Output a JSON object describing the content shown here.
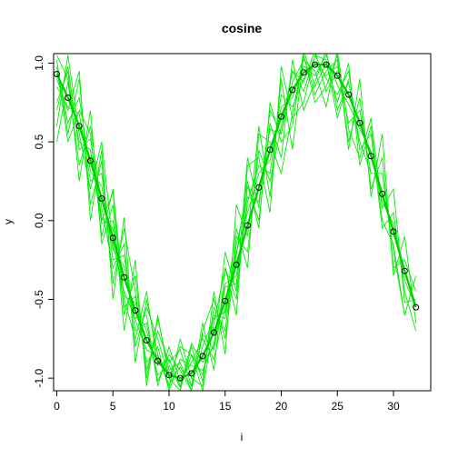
{
  "chart_data": {
    "type": "line",
    "title": "cosine",
    "xlabel": "i",
    "ylabel": "y",
    "xlim": [
      0,
      33
    ],
    "ylim": [
      -1.08,
      1.06
    ],
    "x_ticks": [
      0,
      5,
      10,
      15,
      20,
      25,
      30
    ],
    "y_ticks": [
      -1.0,
      -0.5,
      0.0,
      0.5,
      1.0
    ],
    "y_tick_labels": [
      "-1.0",
      "-0.5",
      "0.0",
      "0.5",
      "1.0"
    ],
    "grid": false,
    "colors": {
      "noisy_lines": "#00ee00",
      "main_line": "#00cc00",
      "points": "#000000"
    },
    "main_series": {
      "x": [
        0,
        1,
        2,
        3,
        4,
        5,
        6,
        7,
        8,
        9,
        10,
        11,
        12,
        13,
        14,
        15,
        16,
        17,
        18,
        19,
        20,
        21,
        22,
        23,
        24,
        25,
        26,
        27,
        28,
        29,
        30,
        31,
        32
      ],
      "y": [
        0.93,
        0.78,
        0.6,
        0.38,
        0.14,
        -0.11,
        -0.36,
        -0.57,
        -0.76,
        -0.89,
        -0.98,
        -1.0,
        -0.97,
        -0.86,
        -0.71,
        -0.51,
        -0.28,
        -0.03,
        0.21,
        0.45,
        0.66,
        0.83,
        0.94,
        0.99,
        0.99,
        0.92,
        0.8,
        0.62,
        0.41,
        0.17,
        -0.07,
        -0.32,
        -0.55
      ]
    },
    "noisy_series": [
      {
        "x": [
          0,
          1,
          2,
          3,
          4,
          5,
          6,
          7,
          8,
          9,
          10,
          11,
          12,
          13,
          14,
          15,
          16,
          17,
          18,
          19,
          20,
          21,
          22,
          23,
          24,
          25,
          26,
          27,
          28,
          29,
          30,
          31,
          32
        ],
        "y": [
          0.95,
          0.62,
          0.78,
          0.31,
          0.22,
          -0.18,
          -0.29,
          -0.63,
          -0.82,
          -0.86,
          -1.04,
          -0.93,
          -1.05,
          -0.8,
          -0.62,
          -0.58,
          -0.2,
          0.05,
          0.3,
          0.38,
          0.72,
          0.78,
          0.98,
          0.92,
          1.05,
          0.86,
          0.74,
          0.58,
          0.44,
          0.12,
          -0.02,
          -0.38,
          -0.55
        ]
      },
      {
        "x": [
          0,
          1,
          2,
          3,
          4,
          5,
          6,
          7,
          8,
          9,
          10,
          11,
          12,
          13,
          14,
          15,
          16,
          17
        ],
        "y": [
          0.7,
          0.98,
          0.45,
          0.52,
          0.02,
          -0.05,
          -0.55,
          -0.48,
          -0.9,
          -0.8,
          -1.08,
          -0.88,
          -0.92,
          -0.95,
          -0.78,
          -0.4,
          -0.35,
          0.1
        ]
      },
      {
        "x": [
          0,
          1,
          2,
          3,
          4,
          5,
          6,
          7,
          8,
          9,
          10,
          11,
          12,
          13,
          14,
          15,
          16,
          17,
          18,
          19,
          20,
          21,
          22,
          23,
          24,
          25
        ],
        "y": [
          1.05,
          0.9,
          0.5,
          0.45,
          -0.02,
          0.0,
          -0.48,
          -0.52,
          -0.7,
          -0.98,
          -0.92,
          -1.06,
          -0.85,
          -0.98,
          -0.6,
          -0.62,
          -0.15,
          0.15,
          0.12,
          0.58,
          0.55,
          0.95,
          0.88,
          1.08,
          0.82,
          0.95
        ]
      },
      {
        "x": [
          0,
          1,
          2,
          3,
          4,
          5,
          6,
          7,
          8,
          9,
          10,
          11,
          12,
          13,
          14,
          15,
          16,
          17,
          18,
          19,
          20,
          21,
          22,
          23,
          24,
          25,
          26,
          27,
          28
        ],
        "y": [
          0.85,
          0.72,
          0.68,
          0.25,
          0.3,
          -0.25,
          -0.22,
          -0.7,
          -0.65,
          -1.02,
          -0.85,
          -0.95,
          -1.08,
          -0.72,
          -0.82,
          -0.42,
          -0.4,
          0.12,
          0.35,
          0.3,
          0.8,
          0.72,
          0.9,
          1.0,
          0.92,
          0.98,
          0.62,
          0.7,
          0.3
        ]
      },
      {
        "x": [
          0,
          1,
          2,
          3,
          4,
          5,
          6,
          7,
          8,
          9,
          10,
          11,
          12,
          13,
          14,
          15,
          16,
          17,
          18,
          19,
          20,
          21,
          22,
          23,
          24,
          25,
          26,
          27,
          28,
          29,
          30,
          31,
          32
        ],
        "y": [
          0.5,
          0.88,
          0.35,
          0.6,
          0.08,
          -0.3,
          -0.15,
          -0.8,
          -0.55,
          -0.75,
          -1.0,
          -1.08,
          -0.8,
          -1.02,
          -0.55,
          -0.7,
          -0.1,
          -0.2,
          0.45,
          0.25,
          0.6,
          0.95,
          0.82,
          1.05,
          0.9,
          0.8,
          0.95,
          0.45,
          0.55,
          -0.05,
          0.05,
          -0.45,
          -0.7
        ]
      },
      {
        "x": [
          0,
          1,
          2,
          3,
          4,
          5,
          6,
          7,
          8,
          9,
          10,
          11,
          12,
          13,
          14,
          15,
          16,
          17,
          18,
          19,
          20,
          21,
          22,
          23,
          24,
          25,
          26,
          27,
          28,
          29,
          30,
          31
        ],
        "y": [
          1.02,
          0.55,
          0.9,
          0.1,
          0.38,
          -0.4,
          -0.05,
          -0.45,
          -0.95,
          -0.7,
          -0.9,
          -0.82,
          -1.05,
          -0.65,
          -0.95,
          -0.3,
          -0.5,
          0.22,
          0.0,
          0.62,
          0.4,
          1.02,
          0.7,
          0.88,
          1.08,
          0.7,
          0.88,
          0.5,
          0.3,
          0.3,
          -0.2,
          -0.6
        ]
      },
      {
        "x": [
          0,
          1,
          2,
          3,
          4,
          5,
          6,
          7,
          8,
          9,
          10,
          11,
          12,
          13,
          14,
          15,
          16,
          17,
          18,
          19,
          20,
          21,
          22,
          23,
          24,
          25,
          26,
          27,
          28,
          29,
          30,
          31,
          32
        ],
        "y": [
          0.6,
          1.05,
          0.55,
          0.2,
          0.5,
          -0.15,
          -0.45,
          -0.62,
          -0.6,
          -1.05,
          -0.8,
          -1.02,
          -0.9,
          -0.75,
          -0.88,
          -0.55,
          -0.05,
          -0.3,
          0.55,
          0.5,
          0.3,
          0.68,
          1.05,
          0.8,
          0.95,
          1.02,
          0.5,
          0.78,
          0.2,
          0.4,
          -0.3,
          -0.25,
          -0.45
        ]
      },
      {
        "x": [
          3,
          4,
          5,
          6,
          7,
          8,
          9,
          10,
          11,
          12,
          13,
          14,
          15,
          16,
          17,
          18,
          19,
          20,
          21,
          22,
          23,
          24,
          25,
          26,
          27,
          28,
          29,
          30,
          31,
          32
        ],
        "y": [
          0.45,
          0.0,
          0.18,
          -0.6,
          -0.35,
          -1.0,
          -0.62,
          -0.95,
          -0.9,
          -1.08,
          -0.7,
          -0.5,
          -0.75,
          -0.22,
          0.25,
          -0.05,
          0.75,
          0.5,
          0.6,
          1.08,
          0.85,
          1.0,
          0.75,
          1.0,
          0.35,
          0.6,
          0.0,
          -0.15,
          -0.6,
          -0.35
        ]
      },
      {
        "x": [
          0,
          1,
          2,
          3,
          4,
          5,
          6,
          7,
          8,
          9,
          10,
          11,
          12,
          13,
          14,
          15,
          16,
          17,
          18,
          19,
          20,
          21,
          22,
          23,
          24,
          25,
          26,
          27,
          28,
          29,
          30,
          31,
          32
        ],
        "y": [
          0.9,
          0.7,
          0.95,
          0.0,
          0.45,
          -0.5,
          0.02,
          -0.9,
          -0.5,
          -0.85,
          -1.06,
          -0.75,
          -1.0,
          -1.05,
          -0.45,
          -0.85,
          0.1,
          -0.1,
          0.6,
          0.15,
          0.9,
          0.45,
          1.05,
          0.75,
          0.85,
          1.05,
          0.45,
          0.9,
          0.15,
          0.55,
          -0.35,
          -0.1,
          -0.65
        ]
      },
      {
        "x": [
          0,
          1,
          2,
          3,
          4,
          5,
          6,
          7,
          8,
          9,
          10,
          11,
          12,
          13,
          14,
          15,
          16,
          17,
          18,
          19,
          20,
          21,
          22,
          23,
          24,
          25,
          26
        ],
        "y": [
          0.75,
          0.95,
          0.25,
          0.7,
          -0.15,
          0.1,
          -0.7,
          -0.25,
          -1.05,
          -0.6,
          -1.0,
          -0.8,
          -0.85,
          -1.08,
          -0.65,
          -0.3,
          -0.6,
          0.35,
          0.4,
          0.05,
          0.98,
          0.65,
          0.75,
          1.05,
          1.02,
          0.65,
          0.9
        ]
      },
      {
        "x": [
          0,
          1,
          2,
          3,
          4,
          5,
          6,
          7,
          8,
          9,
          10,
          11,
          12,
          13,
          14,
          15,
          16,
          17,
          18,
          19,
          20,
          21,
          22,
          23,
          24,
          25,
          26,
          27,
          28,
          29,
          30,
          31,
          32
        ],
        "y": [
          0.98,
          0.5,
          0.7,
          0.55,
          -0.1,
          0.2,
          -0.5,
          -0.75,
          -0.45,
          -0.92,
          -0.88,
          -1.05,
          -0.78,
          -0.9,
          -0.8,
          -0.2,
          -0.45,
          0.4,
          0.08,
          0.7,
          0.55,
          0.88,
          1.02,
          0.95,
          0.72,
          1.08,
          0.58,
          0.4,
          0.65,
          0.08,
          0.2,
          -0.52,
          -0.5
        ]
      }
    ]
  }
}
